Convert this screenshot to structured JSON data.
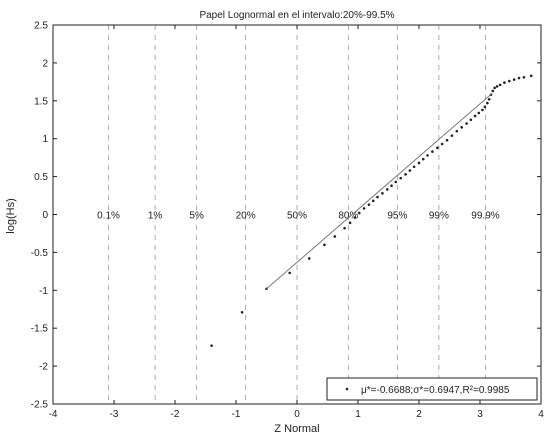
{
  "chart_data": {
    "type": "scatter",
    "title": "Papel Lognormal en el intervalo:20%-99.5%",
    "xlabel": "Z Normal",
    "ylabel": "log(Hs)",
    "xlim": [
      -4,
      4
    ],
    "ylim": [
      -2.5,
      2.5
    ],
    "xticks": [
      -4,
      -3,
      -2,
      -1,
      0,
      1,
      2,
      3,
      4
    ],
    "xtick_labels": [
      "-4",
      "-3",
      "-2",
      "-1",
      "0",
      "1",
      "2",
      "3",
      "4"
    ],
    "yticks": [
      -2.5,
      -2,
      -1.5,
      -1,
      -0.5,
      0,
      0.5,
      1,
      1.5,
      2,
      2.5
    ],
    "ytick_labels": [
      "-2.5",
      "-2",
      "-1.5",
      "-1",
      "-0.5",
      "0",
      "0.5",
      "1",
      "1.5",
      "2",
      "2.5"
    ],
    "grid": "vertical dashed lines at probability levels",
    "prob_lines": [
      {
        "label": "0.1%",
        "z": -3.09
      },
      {
        "label": "1%",
        "z": -2.326
      },
      {
        "label": "5%",
        "z": -1.645
      },
      {
        "label": "20%",
        "z": -0.842
      },
      {
        "label": "50%",
        "z": 0
      },
      {
        "label": "80%",
        "z": 0.842
      },
      {
        "label": "95%",
        "z": 1.645
      },
      {
        "label": "99%",
        "z": 2.326
      },
      {
        "label": "99.9%",
        "z": 3.09
      }
    ],
    "prob_label_y": 0,
    "series": [
      {
        "kind": "points",
        "marker_color": "#222222",
        "x": [
          -1.4,
          -0.9,
          -0.5,
          -0.12,
          0.2,
          0.45,
          0.62,
          0.78,
          0.87,
          0.95,
          1.02,
          1.1,
          1.18,
          1.25,
          1.32,
          1.4,
          1.48,
          1.55,
          1.62,
          1.7,
          1.78,
          1.85,
          1.92,
          2.0,
          2.07,
          2.14,
          2.22,
          2.3,
          2.38,
          2.46,
          2.54,
          2.62,
          2.7,
          2.78,
          2.85,
          2.92,
          2.98,
          3.04,
          3.08,
          3.12,
          3.15,
          3.18,
          3.21,
          3.24,
          3.28,
          3.33,
          3.4,
          3.48,
          3.56,
          3.64,
          3.72,
          3.84
        ],
        "y": [
          -1.73,
          -1.29,
          -0.98,
          -0.77,
          -0.58,
          -0.4,
          -0.29,
          -0.18,
          -0.11,
          -0.04,
          0.02,
          0.08,
          0.13,
          0.18,
          0.23,
          0.28,
          0.33,
          0.38,
          0.43,
          0.48,
          0.53,
          0.58,
          0.63,
          0.68,
          0.73,
          0.78,
          0.83,
          0.88,
          0.93,
          0.98,
          1.04,
          1.1,
          1.15,
          1.2,
          1.25,
          1.3,
          1.34,
          1.38,
          1.42,
          1.47,
          1.52,
          1.58,
          1.63,
          1.67,
          1.69,
          1.71,
          1.74,
          1.76,
          1.78,
          1.8,
          1.81,
          1.83
        ]
      },
      {
        "kind": "fit_line",
        "line_color": "#7a7a7a",
        "x": [
          -0.5,
          3.2
        ],
        "y": [
          -0.98,
          1.6
        ]
      }
    ],
    "legend": {
      "placement": "bottom-right",
      "text": "μ*=-0.6688;σ*=0.6947,R²=0.9985"
    }
  }
}
